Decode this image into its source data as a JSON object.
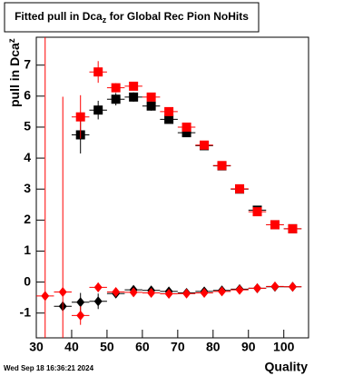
{
  "chart_data": {
    "type": "scatter",
    "title": [
      "Fitted pull in Dca",
      "z",
      " for Global Rec Pion NoHits"
    ],
    "y_label": [
      "pull in Dca",
      "z"
    ],
    "x_label": "Quality",
    "timestamp": "Wed Sep 18 16:36:21 2024",
    "x": [
      32.5,
      37.5,
      42.5,
      47.5,
      52.5,
      57.5,
      62.5,
      67.5,
      72.5,
      77.5,
      82.5,
      87.5,
      92.5,
      97.5,
      102.5
    ],
    "x_half_width": 2.5,
    "series": [
      {
        "color": "#000000",
        "marker": "square",
        "values": [
          null,
          null,
          4.75,
          5.55,
          5.9,
          5.97,
          5.68,
          5.25,
          4.82,
          4.4,
          3.75,
          3.0,
          2.32,
          1.85,
          1.72
        ],
        "errors": [
          null,
          null,
          0.6,
          0.3,
          0.2,
          0.15,
          0.15,
          0.12,
          0.1,
          0.1,
          0.08,
          0.08,
          0.08,
          0.08,
          0.08
        ]
      },
      {
        "color": "#ff0000",
        "marker": "square",
        "values": [
          null,
          null,
          5.33,
          6.78,
          6.27,
          6.32,
          5.97,
          5.5,
          5.0,
          4.42,
          3.76,
          3.01,
          2.27,
          1.85,
          1.72
        ],
        "errors": [
          null,
          null,
          0.7,
          0.35,
          0.15,
          0.12,
          0.1,
          0.1,
          0.1,
          0.08,
          0.08,
          0.08,
          0.08,
          0.08,
          0.08
        ]
      },
      {
        "color": "#000000",
        "marker": "diamond",
        "values": [
          null,
          -0.78,
          -0.65,
          -0.62,
          -0.37,
          -0.25,
          -0.27,
          -0.3,
          -0.35,
          -0.3,
          -0.27,
          -0.23,
          -0.2,
          -0.15,
          -0.15
        ],
        "errors": [
          null,
          0.15,
          0.3,
          0.25,
          0.12,
          0.08,
          0.08,
          0.06,
          0.06,
          0.06,
          0.05,
          0.05,
          0.05,
          0.05,
          0.05
        ]
      },
      {
        "color": "#ff0000",
        "marker": "diamond",
        "values": [
          -0.45,
          -0.32,
          -1.08,
          -0.17,
          -0.32,
          -0.33,
          -0.35,
          -0.38,
          -0.37,
          -0.35,
          -0.3,
          -0.25,
          -0.2,
          -0.14,
          -0.15
        ],
        "errors": [
          10,
          6.3,
          0.3,
          0.15,
          0.08,
          0.08,
          0.08,
          0.06,
          0.06,
          0.06,
          0.05,
          0.05,
          0.05,
          0.05,
          0.05
        ]
      }
    ],
    "xlim": [
      30,
      107
    ],
    "ylim": [
      -1.8,
      7.9
    ],
    "xticks": [
      30,
      40,
      50,
      60,
      70,
      80,
      90,
      100
    ],
    "yticks": [
      -1,
      0,
      1,
      2,
      3,
      4,
      5,
      6,
      7
    ]
  }
}
